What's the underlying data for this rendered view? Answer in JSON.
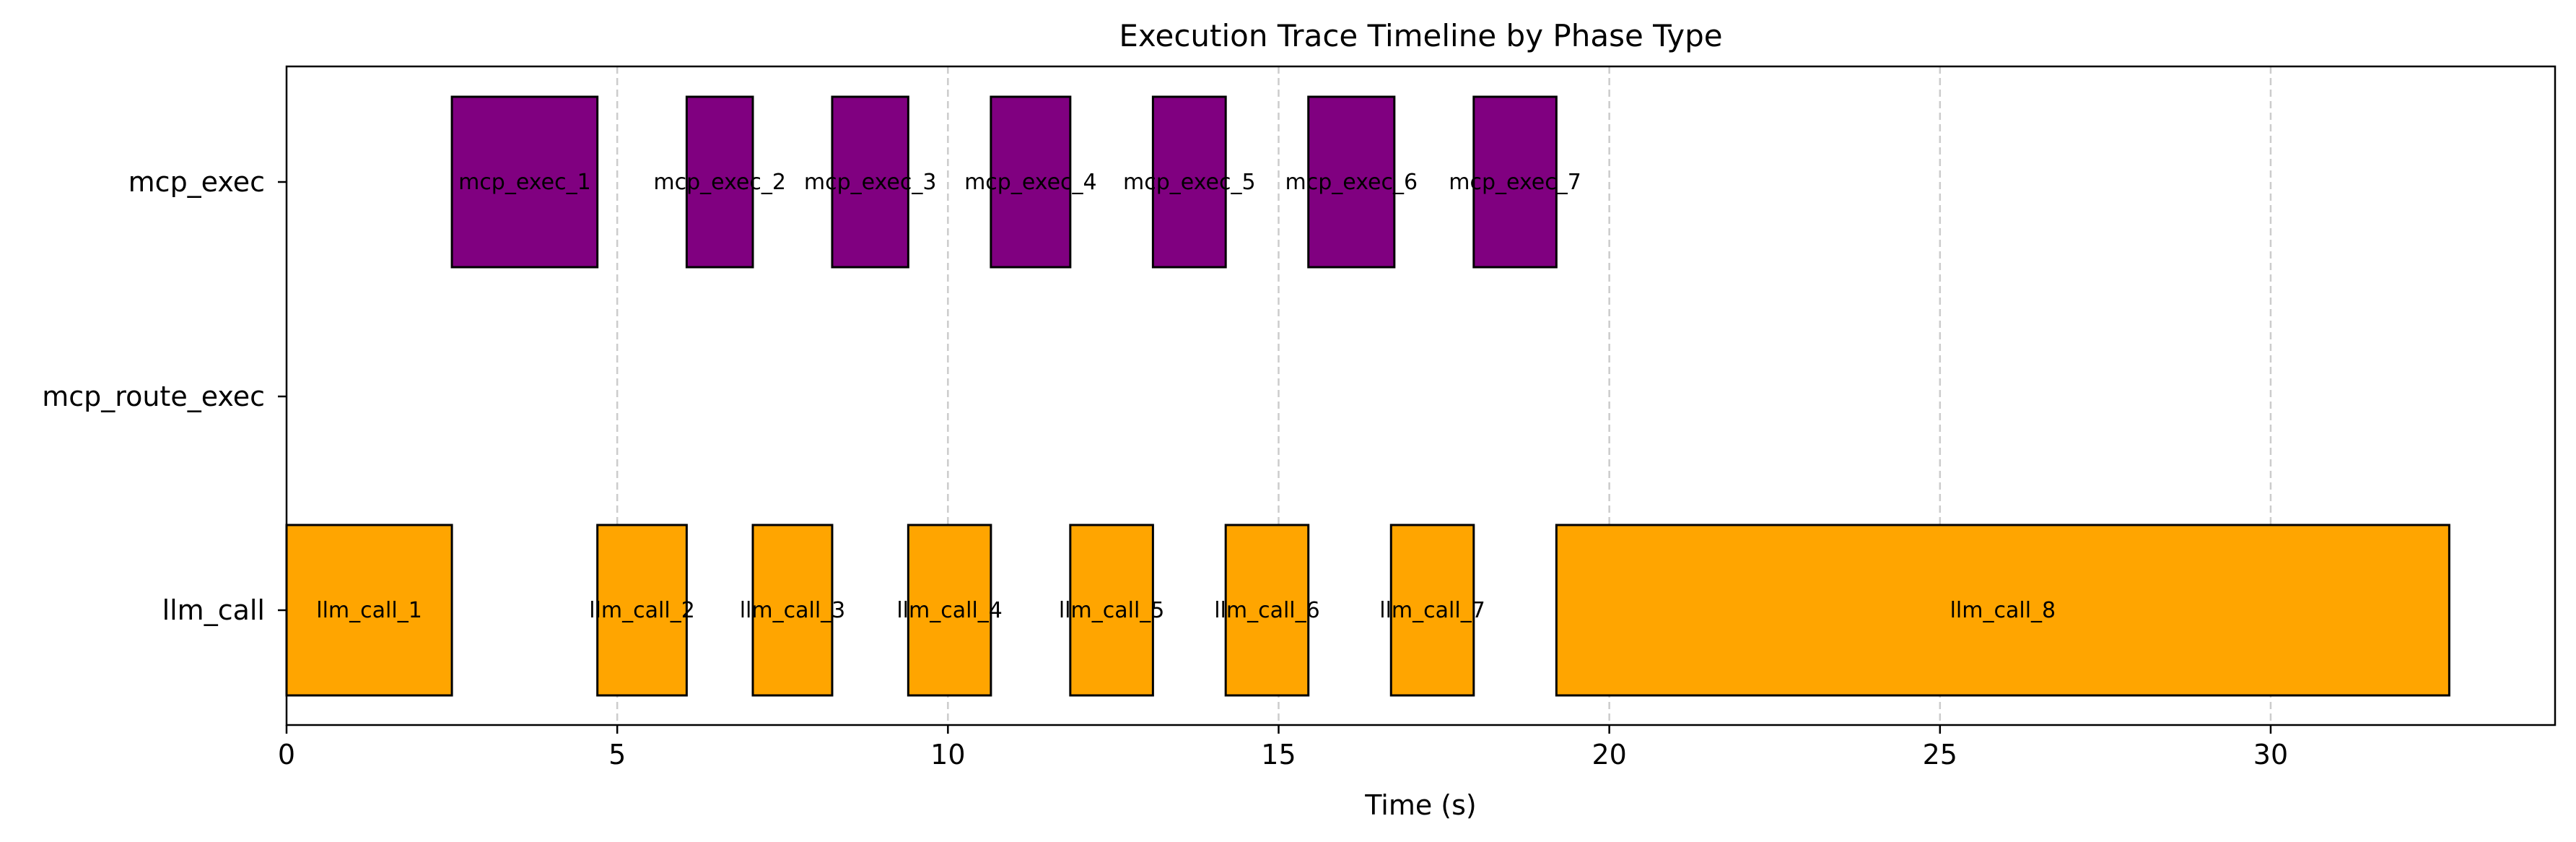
{
  "chart_data": {
    "type": "gantt",
    "title": "Execution Trace Timeline by Phase Type",
    "xlabel": "Time (s)",
    "ylabel": "",
    "xlim": [
      0,
      34.3
    ],
    "xticks": [
      0,
      5,
      10,
      15,
      20,
      25,
      30
    ],
    "grid": "x-dashed",
    "categories": [
      "mcp_exec",
      "mcp_route_exec",
      "llm_call"
    ],
    "colors": {
      "mcp_exec": "#800080",
      "llm_call": "#FFA500",
      "edge": "#000000",
      "grid": "#cccccc"
    },
    "series": [
      {
        "label": "mcp_exec_1",
        "category": "mcp_exec",
        "start": 2.5,
        "end": 4.7
      },
      {
        "label": "mcp_exec_2",
        "category": "mcp_exec",
        "start": 6.05,
        "end": 7.05
      },
      {
        "label": "mcp_exec_3",
        "category": "mcp_exec",
        "start": 8.25,
        "end": 9.4
      },
      {
        "label": "mcp_exec_4",
        "category": "mcp_exec",
        "start": 10.65,
        "end": 11.85
      },
      {
        "label": "mcp_exec_5",
        "category": "mcp_exec",
        "start": 13.1,
        "end": 14.2
      },
      {
        "label": "mcp_exec_6",
        "category": "mcp_exec",
        "start": 15.45,
        "end": 16.75
      },
      {
        "label": "mcp_exec_7",
        "category": "mcp_exec",
        "start": 17.95,
        "end": 19.2
      },
      {
        "label": "llm_call_1",
        "category": "llm_call",
        "start": 0.0,
        "end": 2.5
      },
      {
        "label": "llm_call_2",
        "category": "llm_call",
        "start": 4.7,
        "end": 6.05
      },
      {
        "label": "llm_call_3",
        "category": "llm_call",
        "start": 7.05,
        "end": 8.25
      },
      {
        "label": "llm_call_4",
        "category": "llm_call",
        "start": 9.4,
        "end": 10.65
      },
      {
        "label": "llm_call_5",
        "category": "llm_call",
        "start": 11.85,
        "end": 13.1
      },
      {
        "label": "llm_call_6",
        "category": "llm_call",
        "start": 14.2,
        "end": 15.45
      },
      {
        "label": "llm_call_7",
        "category": "llm_call",
        "start": 16.7,
        "end": 17.95
      },
      {
        "label": "llm_call_8",
        "category": "llm_call",
        "start": 19.2,
        "end": 32.7
      }
    ]
  }
}
